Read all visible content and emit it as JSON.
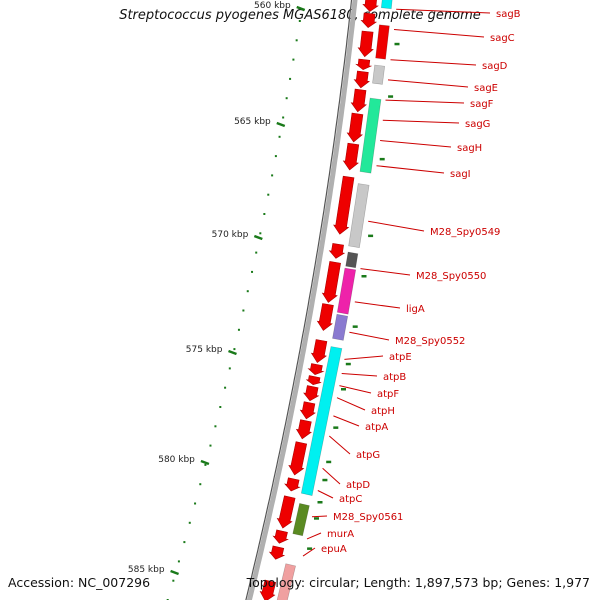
{
  "header": {
    "title": "Streptococcus pyogenes MGAS6180, complete genome"
  },
  "footer": {
    "accession": "Accession: NC_007296",
    "topology": "Topology: circular; Length: 1,897,573 bp; Genes: 1,977"
  },
  "colors": {
    "cds": "#ee0000",
    "label": "#cc0000",
    "tick": "#1a7a1a",
    "backbone": "#999999",
    "cyan": "#00f0f0",
    "green_mint": "#22e89a",
    "gray_light": "#c8c8c8",
    "gray_dark": "#555555",
    "magenta": "#ee22aa",
    "purple": "#8a7ad0",
    "olive": "#5a8a22",
    "pink": "#f0a0a0"
  },
  "ruler": {
    "major_labels": [
      "560 kbp",
      "565 kbp",
      "570 kbp",
      "575 kbp",
      "580 kbp",
      "585 kbp"
    ]
  },
  "gene_labels": [
    "sagB",
    "sagC",
    "sagD",
    "sagE",
    "sagF",
    "sagG",
    "sagH",
    "sagI",
    "M28_Spy0549",
    "M28_Spy0550",
    "ligA",
    "M28_Spy0552",
    "atpE",
    "atpB",
    "atpF",
    "atpH",
    "atpA",
    "atpG",
    "atpD",
    "atpC",
    "M28_Spy0561",
    "murA",
    "epuA"
  ]
}
